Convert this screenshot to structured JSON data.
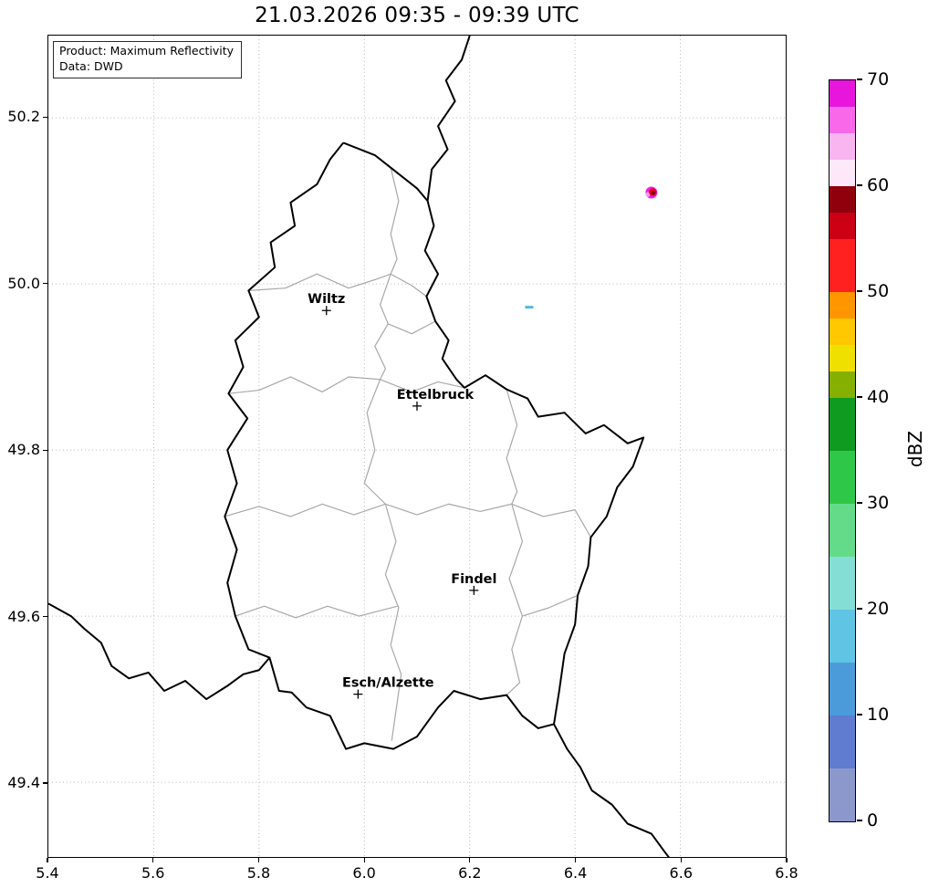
{
  "title": "21.03.2026 09:35 - 09:39 UTC",
  "info_box": {
    "product": "Product: Maximum Reflectivity",
    "source": "Data: DWD"
  },
  "axes": {
    "xlim": [
      5.4,
      6.8
    ],
    "ylim": [
      49.31,
      50.299
    ],
    "xticks": [
      "5.4",
      "5.6",
      "5.8",
      "6.0",
      "6.2",
      "6.4",
      "6.6",
      "6.8"
    ],
    "yticks": [
      "49.4",
      "49.6",
      "49.8",
      "50.0",
      "50.2"
    ],
    "grid": "dotted"
  },
  "colorbar": {
    "label": "dBZ",
    "min": 0,
    "max": 70,
    "ticks": [
      0,
      10,
      20,
      30,
      40,
      50,
      60,
      70
    ],
    "bands": [
      {
        "from": 0,
        "to": 5,
        "color": "#8c98cb"
      },
      {
        "from": 5,
        "to": 10,
        "color": "#5f7cd0"
      },
      {
        "from": 10,
        "to": 15,
        "color": "#4b9bdb"
      },
      {
        "from": 15,
        "to": 20,
        "color": "#60c4e4"
      },
      {
        "from": 20,
        "to": 25,
        "color": "#85ded6"
      },
      {
        "from": 25,
        "to": 30,
        "color": "#64db88"
      },
      {
        "from": 30,
        "to": 35,
        "color": "#2fc748"
      },
      {
        "from": 35,
        "to": 40,
        "color": "#0f9b20"
      },
      {
        "from": 40,
        "to": 42.5,
        "color": "#86b000"
      },
      {
        "from": 42.5,
        "to": 45,
        "color": "#f0e000"
      },
      {
        "from": 45,
        "to": 47.5,
        "color": "#ffc800"
      },
      {
        "from": 47.5,
        "to": 50,
        "color": "#ff9600"
      },
      {
        "from": 50,
        "to": 55,
        "color": "#ff2020"
      },
      {
        "from": 55,
        "to": 57.5,
        "color": "#cc0014"
      },
      {
        "from": 57.5,
        "to": 60,
        "color": "#8f000c"
      },
      {
        "from": 60,
        "to": 62.5,
        "color": "#fce8f8"
      },
      {
        "from": 62.5,
        "to": 65,
        "color": "#f9b5ef"
      },
      {
        "from": 65,
        "to": 67.5,
        "color": "#f868e8"
      },
      {
        "from": 67.5,
        "to": 70,
        "color": "#e816dc"
      }
    ]
  },
  "chart_data": {
    "type": "heatmap",
    "title": "21.03.2026 09:35 - 09:39 UTC",
    "product": "Maximum Reflectivity",
    "data_source": "DWD",
    "units": "dBZ",
    "x_axis": "longitude_deg_east",
    "y_axis": "latitude_deg_north",
    "xlim": [
      5.4,
      6.8
    ],
    "ylim": [
      49.31,
      50.299
    ],
    "legend_position": "right-colorbar",
    "cities": [
      {
        "name": "Wiltz",
        "lon": 5.928,
        "lat": 49.968,
        "label_dx": 0
      },
      {
        "name": "Ettelbruck",
        "lon": 6.1,
        "lat": 49.853,
        "label_dx": 20
      },
      {
        "name": "Findel",
        "lon": 6.208,
        "lat": 49.631,
        "label_dx": 0
      },
      {
        "name": "Esch/Alzette",
        "lon": 5.988,
        "lat": 49.506,
        "label_dx": 33
      }
    ],
    "echoes": [
      {
        "type": "cell",
        "lon": 6.545,
        "lat": 50.11,
        "max_dbz": 65,
        "parts": [
          {
            "dx": 0,
            "dy": 0,
            "r": 6.5,
            "color": "#ed1fe0"
          },
          {
            "dx": -4,
            "dy": 2,
            "r": 2.6,
            "color": "#fa9ff2"
          },
          {
            "dx": 1.5,
            "dy": -0.5,
            "r": 4.2,
            "color": "#e3001c"
          },
          {
            "dx": 2,
            "dy": 0.5,
            "r": 2.2,
            "color": "#7e000a"
          }
        ]
      },
      {
        "type": "dash",
        "lon": 6.313,
        "lat": 49.972,
        "max_dbz": 15,
        "w": 9,
        "h": 3,
        "color": "#58b8dc"
      }
    ]
  },
  "map": {
    "country_border_color": "#000000",
    "canton_border_color": "#a8a8a8",
    "luxembourg": [
      [
        5.96,
        50.17
      ],
      [
        6.02,
        50.155
      ],
      [
        6.05,
        50.14
      ],
      [
        6.1,
        50.115
      ],
      [
        6.12,
        50.1
      ],
      [
        6.132,
        50.07
      ],
      [
        6.115,
        50.04
      ],
      [
        6.14,
        50.012
      ],
      [
        6.118,
        49.985
      ],
      [
        6.135,
        49.955
      ],
      [
        6.16,
        49.932
      ],
      [
        6.148,
        49.91
      ],
      [
        6.175,
        49.885
      ],
      [
        6.19,
        49.875
      ],
      [
        6.23,
        49.89
      ],
      [
        6.27,
        49.873
      ],
      [
        6.31,
        49.862
      ],
      [
        6.33,
        49.84
      ],
      [
        6.38,
        49.845
      ],
      [
        6.42,
        49.82
      ],
      [
        6.455,
        49.83
      ],
      [
        6.5,
        49.808
      ],
      [
        6.53,
        49.815
      ],
      [
        6.51,
        49.78
      ],
      [
        6.48,
        49.755
      ],
      [
        6.46,
        49.72
      ],
      [
        6.43,
        49.695
      ],
      [
        6.425,
        49.66
      ],
      [
        6.405,
        49.625
      ],
      [
        6.4,
        49.59
      ],
      [
        6.38,
        49.555
      ],
      [
        6.37,
        49.51
      ],
      [
        6.36,
        49.47
      ],
      [
        6.33,
        49.465
      ],
      [
        6.3,
        49.48
      ],
      [
        6.27,
        49.505
      ],
      [
        6.22,
        49.5
      ],
      [
        6.17,
        49.51
      ],
      [
        6.14,
        49.49
      ],
      [
        6.1,
        49.455
      ],
      [
        6.055,
        49.44
      ],
      [
        6.0,
        49.447
      ],
      [
        5.965,
        49.44
      ],
      [
        5.935,
        49.48
      ],
      [
        5.89,
        49.49
      ],
      [
        5.862,
        49.508
      ],
      [
        5.838,
        49.51
      ],
      [
        5.82,
        49.55
      ],
      [
        5.78,
        49.56
      ],
      [
        5.755,
        49.6
      ],
      [
        5.74,
        49.64
      ],
      [
        5.758,
        49.68
      ],
      [
        5.735,
        49.72
      ],
      [
        5.758,
        49.76
      ],
      [
        5.74,
        49.8
      ],
      [
        5.778,
        49.838
      ],
      [
        5.742,
        49.868
      ],
      [
        5.77,
        49.9
      ],
      [
        5.755,
        49.932
      ],
      [
        5.8,
        49.96
      ],
      [
        5.78,
        49.992
      ],
      [
        5.83,
        50.02
      ],
      [
        5.822,
        50.05
      ],
      [
        5.868,
        50.07
      ],
      [
        5.86,
        50.098
      ],
      [
        5.91,
        50.12
      ],
      [
        5.935,
        50.15
      ],
      [
        5.96,
        50.17
      ]
    ],
    "be_de_border": [
      [
        6.2,
        50.299
      ],
      [
        6.185,
        50.27
      ],
      [
        6.155,
        50.245
      ],
      [
        6.172,
        50.22
      ],
      [
        6.14,
        50.19
      ],
      [
        6.158,
        50.162
      ],
      [
        6.128,
        50.138
      ],
      [
        6.12,
        50.1
      ]
    ],
    "fr_de_border": [
      [
        6.36,
        49.47
      ],
      [
        6.385,
        49.44
      ],
      [
        6.41,
        49.418
      ],
      [
        6.432,
        49.39
      ],
      [
        6.47,
        49.373
      ],
      [
        6.5,
        49.35
      ],
      [
        6.545,
        49.338
      ],
      [
        6.568,
        49.318
      ],
      [
        6.58,
        49.308
      ]
    ],
    "be_fr_border": [
      [
        5.4,
        49.615
      ],
      [
        5.443,
        49.6
      ],
      [
        5.468,
        49.585
      ],
      [
        5.5,
        49.568
      ],
      [
        5.52,
        49.54
      ],
      [
        5.553,
        49.525
      ],
      [
        5.59,
        49.532
      ],
      [
        5.62,
        49.51
      ],
      [
        5.66,
        49.522
      ],
      [
        5.7,
        49.5
      ],
      [
        5.74,
        49.516
      ],
      [
        5.77,
        49.53
      ],
      [
        5.8,
        49.535
      ],
      [
        5.82,
        49.55
      ]
    ],
    "cantons": [
      [
        [
          5.78,
          49.992
        ],
        [
          5.85,
          49.995
        ],
        [
          5.91,
          50.012
        ],
        [
          5.97,
          49.995
        ],
        [
          6.02,
          50.005
        ],
        [
          6.05,
          50.012
        ],
        [
          6.09,
          49.998
        ],
        [
          6.118,
          49.985
        ]
      ],
      [
        [
          6.05,
          50.14
        ],
        [
          6.065,
          50.1
        ],
        [
          6.05,
          50.06
        ],
        [
          6.062,
          50.03
        ],
        [
          6.05,
          50.012
        ]
      ],
      [
        [
          5.742,
          49.868
        ],
        [
          5.8,
          49.872
        ],
        [
          5.86,
          49.888
        ],
        [
          5.92,
          49.87
        ],
        [
          5.97,
          49.888
        ],
        [
          6.03,
          49.885
        ]
      ],
      [
        [
          6.05,
          50.012
        ],
        [
          6.03,
          49.975
        ],
        [
          6.045,
          49.952
        ],
        [
          6.02,
          49.925
        ],
        [
          6.04,
          49.898
        ],
        [
          6.03,
          49.885
        ]
      ],
      [
        [
          6.045,
          49.952
        ],
        [
          6.09,
          49.94
        ],
        [
          6.135,
          49.955
        ]
      ],
      [
        [
          6.03,
          49.885
        ],
        [
          6.09,
          49.87
        ],
        [
          6.14,
          49.882
        ],
        [
          6.19,
          49.875
        ]
      ],
      [
        [
          5.735,
          49.72
        ],
        [
          5.8,
          49.732
        ],
        [
          5.86,
          49.72
        ],
        [
          5.92,
          49.735
        ],
        [
          5.98,
          49.722
        ],
        [
          6.04,
          49.735
        ],
        [
          6.1,
          49.722
        ],
        [
          6.16,
          49.735
        ],
        [
          6.22,
          49.726
        ],
        [
          6.28,
          49.735
        ],
        [
          6.34,
          49.72
        ],
        [
          6.4,
          49.728
        ],
        [
          6.43,
          49.695
        ]
      ],
      [
        [
          6.03,
          49.885
        ],
        [
          6.005,
          49.845
        ],
        [
          6.02,
          49.8
        ],
        [
          6.0,
          49.76
        ],
        [
          6.04,
          49.735
        ]
      ],
      [
        [
          6.28,
          49.735
        ],
        [
          6.3,
          49.69
        ],
        [
          6.275,
          49.645
        ],
        [
          6.3,
          49.6
        ],
        [
          6.28,
          49.56
        ],
        [
          6.295,
          49.52
        ],
        [
          6.27,
          49.505
        ]
      ],
      [
        [
          6.04,
          49.735
        ],
        [
          6.06,
          49.69
        ],
        [
          6.04,
          49.65
        ],
        [
          6.065,
          49.61
        ],
        [
          6.05,
          49.565
        ],
        [
          6.07,
          49.53
        ],
        [
          6.052,
          49.45
        ]
      ],
      [
        [
          5.755,
          49.6
        ],
        [
          5.81,
          49.612
        ],
        [
          5.87,
          49.598
        ],
        [
          5.93,
          49.612
        ],
        [
          5.99,
          49.6
        ],
        [
          6.063,
          49.612
        ]
      ],
      [
        [
          6.27,
          49.873
        ],
        [
          6.29,
          49.83
        ],
        [
          6.27,
          49.79
        ],
        [
          6.29,
          49.75
        ],
        [
          6.28,
          49.735
        ]
      ],
      [
        [
          6.3,
          49.6
        ],
        [
          6.35,
          49.61
        ],
        [
          6.405,
          49.625
        ]
      ]
    ]
  }
}
